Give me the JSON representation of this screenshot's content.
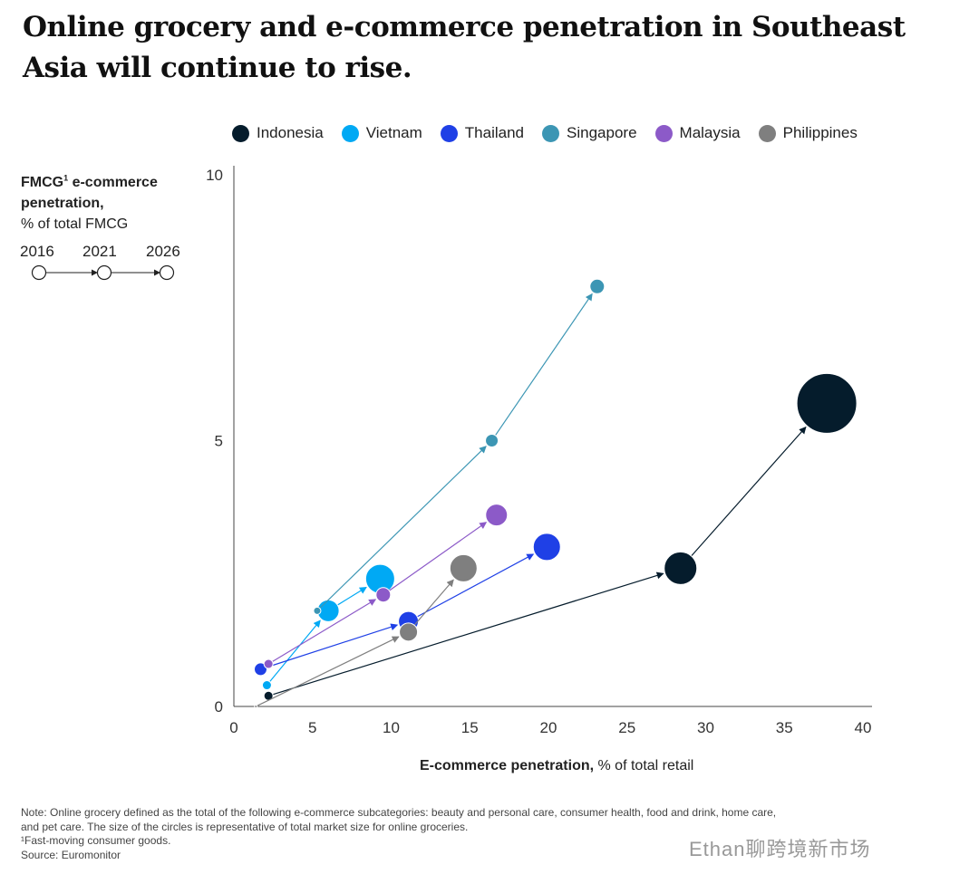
{
  "title": "Online grocery and e-commerce penetration in Southeast Asia will continue to rise.",
  "y_label": {
    "bold": "FMCG",
    "sup": "1",
    "bold2": " e-commerce penetration,",
    "sub": "% of total FMCG"
  },
  "x_label": {
    "bold": "E-commerce penetration,",
    "rest": " % of total retail"
  },
  "timeline_years": [
    "2016",
    "2021",
    "2026"
  ],
  "notes": [
    "Note: Online grocery defined as the total of the following e-commerce subcategories: beauty and personal care, consumer health, food and drink, home care,",
    "and pet care. The size of the circles is representative of total market size for online groceries.",
    "¹Fast-moving consumer goods.",
    "Source: Euromonitor"
  ],
  "watermark": "Ethan聊跨境新市场",
  "chart_data": {
    "type": "scatter",
    "title": "Online grocery and e-commerce penetration in Southeast Asia will continue to rise.",
    "xlabel": "E-commerce penetration, % of total retail",
    "ylabel": "FMCG e-commerce penetration, % of total FMCG",
    "xlim": [
      0,
      40
    ],
    "ylim": [
      0,
      10
    ],
    "xticks": [
      0,
      5,
      10,
      15,
      20,
      25,
      30,
      35,
      40
    ],
    "yticks": [
      0,
      5,
      10
    ],
    "grid": false,
    "legend": "top",
    "years": [
      "2016",
      "2021",
      "2026"
    ],
    "series": [
      {
        "name": "Indonesia",
        "color": "#051c2c",
        "x": [
          2.2,
          28.4,
          37.7
        ],
        "y": [
          0.2,
          2.6,
          5.7
        ],
        "size": [
          5,
          18,
          33
        ]
      },
      {
        "name": "Vietnam",
        "color": "#00a9f4",
        "x": [
          2.1,
          6.0,
          9.3
        ],
        "y": [
          0.4,
          1.8,
          2.4
        ],
        "size": [
          5,
          12,
          16
        ]
      },
      {
        "name": "Thailand",
        "color": "#1f40e6",
        "x": [
          1.7,
          11.1,
          19.9
        ],
        "y": [
          0.7,
          1.6,
          3.0
        ],
        "size": [
          7,
          11,
          15
        ]
      },
      {
        "name": "Singapore",
        "color": "#3c96b4",
        "x": [
          5.3,
          16.4,
          23.1
        ],
        "y": [
          1.8,
          5.0,
          7.9
        ],
        "size": [
          4,
          7,
          8
        ]
      },
      {
        "name": "Malaysia",
        "color": "#8c5ac8",
        "x": [
          2.2,
          9.5,
          16.7
        ],
        "y": [
          0.8,
          2.1,
          3.6
        ],
        "size": [
          5,
          8,
          12
        ]
      },
      {
        "name": "Philippines",
        "color": "#7f7f7f",
        "x": [
          1.4,
          11.1,
          14.6
        ],
        "y": [
          0.0,
          1.4,
          2.6
        ],
        "size": [
          1.5,
          10,
          15
        ]
      }
    ]
  }
}
